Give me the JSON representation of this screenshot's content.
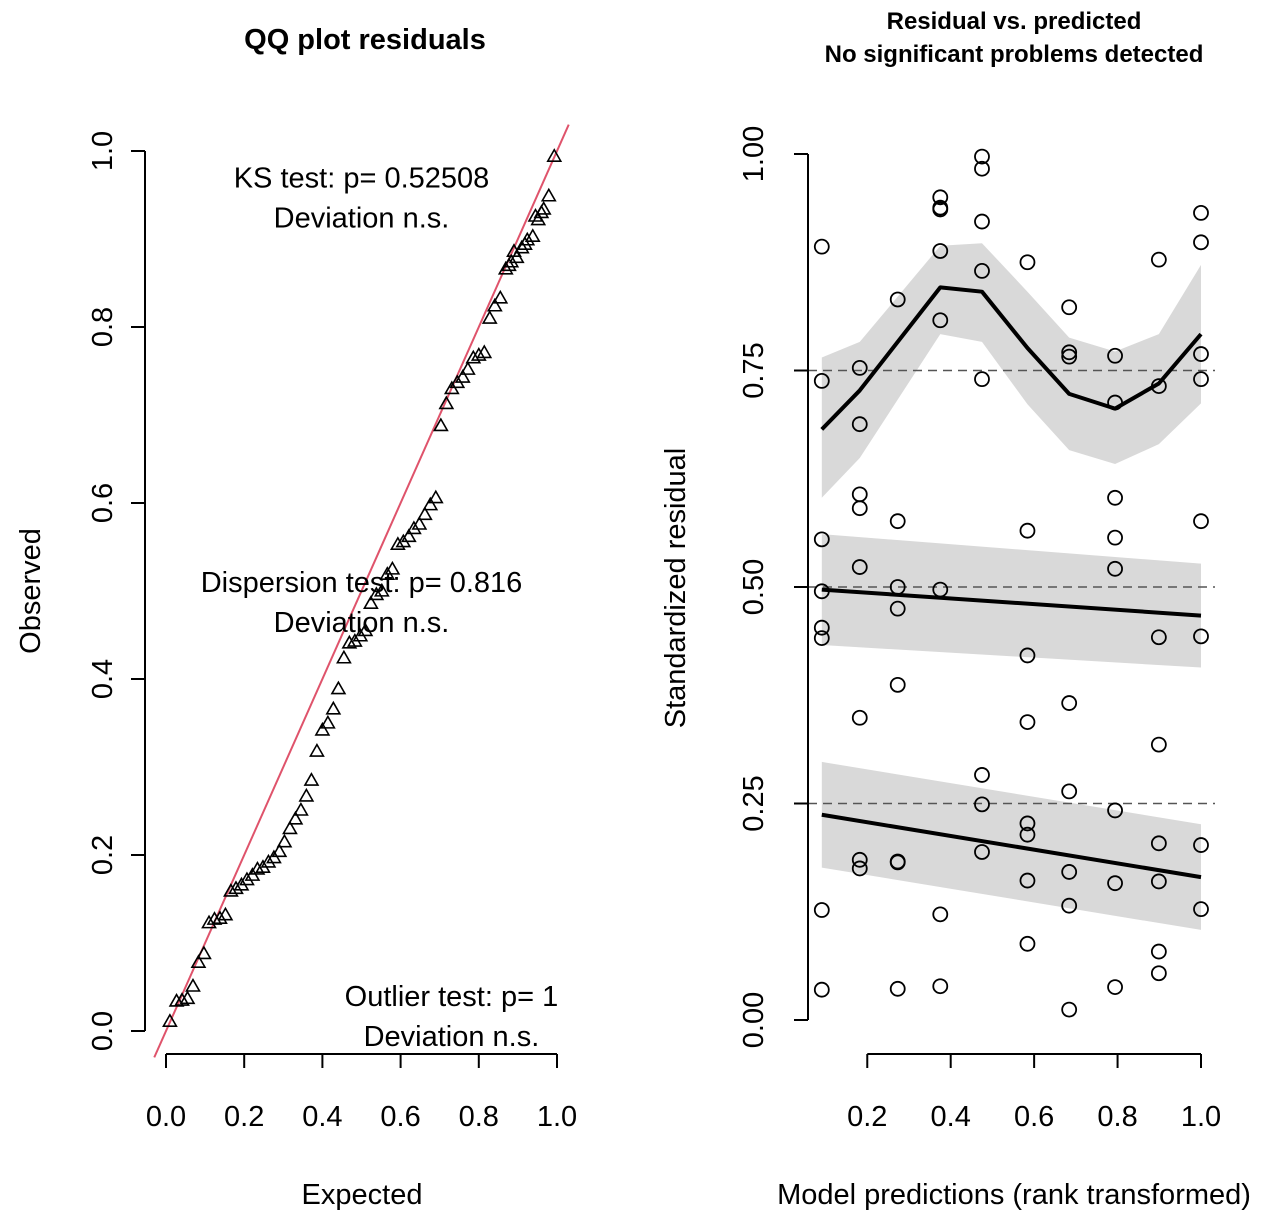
{
  "chart_data": [
    {
      "type": "scatter",
      "title": "QQ plot residuals",
      "xlabel": "Expected",
      "ylabel": "Observed",
      "xlim": [
        0,
        1
      ],
      "ylim": [
        0,
        1
      ],
      "x_ticks": [
        "0.0",
        "0.2",
        "0.4",
        "0.6",
        "0.8",
        "1.0"
      ],
      "y_ticks": [
        "0.0",
        "0.2",
        "0.4",
        "0.6",
        "0.8",
        "1.0"
      ],
      "marker": "triangle",
      "reference_line": {
        "from": [
          -0.03,
          -0.03
        ],
        "to": [
          1.03,
          1.03
        ],
        "color": "#DF536B"
      },
      "annotations": [
        {
          "lines": [
            "KS test: p= 0.52508",
            "Deviation  n.s."
          ],
          "x": 0.5,
          "y": 0.97
        },
        {
          "lines": [
            "Dispersion test: p= 0.816",
            "Deviation  n.s."
          ],
          "x": 0.5,
          "y": 0.51
        },
        {
          "lines": [
            "Outlier test: p= 1",
            "Deviation  n.s."
          ],
          "x": 0.73,
          "y": 0.04
        }
      ],
      "points": [
        [
          0.01,
          0.011
        ],
        [
          0.027,
          0.034
        ],
        [
          0.041,
          0.035
        ],
        [
          0.055,
          0.037
        ],
        [
          0.069,
          0.051
        ],
        [
          0.083,
          0.078
        ],
        [
          0.097,
          0.088
        ],
        [
          0.11,
          0.123
        ],
        [
          0.124,
          0.127
        ],
        [
          0.138,
          0.128
        ],
        [
          0.152,
          0.132
        ],
        [
          0.166,
          0.159
        ],
        [
          0.179,
          0.162
        ],
        [
          0.193,
          0.166
        ],
        [
          0.207,
          0.172
        ],
        [
          0.221,
          0.177
        ],
        [
          0.234,
          0.184
        ],
        [
          0.248,
          0.186
        ],
        [
          0.262,
          0.192
        ],
        [
          0.276,
          0.197
        ],
        [
          0.29,
          0.204
        ],
        [
          0.303,
          0.215
        ],
        [
          0.317,
          0.23
        ],
        [
          0.331,
          0.241
        ],
        [
          0.345,
          0.251
        ],
        [
          0.359,
          0.267
        ],
        [
          0.372,
          0.285
        ],
        [
          0.386,
          0.318
        ],
        [
          0.4,
          0.342
        ],
        [
          0.414,
          0.35
        ],
        [
          0.428,
          0.366
        ],
        [
          0.441,
          0.389
        ],
        [
          0.455,
          0.424
        ],
        [
          0.469,
          0.441
        ],
        [
          0.483,
          0.443
        ],
        [
          0.497,
          0.449
        ],
        [
          0.51,
          0.455
        ],
        [
          0.524,
          0.486
        ],
        [
          0.538,
          0.496
        ],
        [
          0.552,
          0.5
        ],
        [
          0.566,
          0.519
        ],
        [
          0.579,
          0.525
        ],
        [
          0.593,
          0.553
        ],
        [
          0.607,
          0.556
        ],
        [
          0.621,
          0.562
        ],
        [
          0.634,
          0.571
        ],
        [
          0.648,
          0.576
        ],
        [
          0.662,
          0.587
        ],
        [
          0.676,
          0.598
        ],
        [
          0.69,
          0.606
        ],
        [
          0.703,
          0.688
        ],
        [
          0.717,
          0.713
        ],
        [
          0.731,
          0.73
        ],
        [
          0.745,
          0.737
        ],
        [
          0.759,
          0.743
        ],
        [
          0.772,
          0.752
        ],
        [
          0.786,
          0.765
        ],
        [
          0.8,
          0.768
        ],
        [
          0.814,
          0.771
        ],
        [
          0.828,
          0.81
        ],
        [
          0.841,
          0.824
        ],
        [
          0.855,
          0.833
        ],
        [
          0.869,
          0.866
        ],
        [
          0.883,
          0.874
        ],
        [
          0.897,
          0.879
        ],
        [
          0.91,
          0.89
        ],
        [
          0.924,
          0.899
        ],
        [
          0.938,
          0.903
        ],
        [
          0.952,
          0.922
        ],
        [
          0.966,
          0.934
        ],
        [
          0.979,
          0.949
        ],
        [
          0.993,
          0.994
        ],
        [
          0.96,
          0.93
        ],
        [
          0.945,
          0.926
        ],
        [
          0.918,
          0.894
        ],
        [
          0.877,
          0.87
        ],
        [
          0.89,
          0.886
        ]
      ]
    },
    {
      "type": "scatter",
      "title": "Residual vs. predicted",
      "subtitle": "No significant problems detected",
      "xlabel": "Model predictions (rank transformed)",
      "ylabel": "Standardized residual",
      "xlim": [
        0.05,
        1.0
      ],
      "ylim": [
        0,
        1
      ],
      "x_ticks": [
        "0.2",
        "0.4",
        "0.6",
        "0.8",
        "1.0"
      ],
      "y_ticks": [
        "0.00",
        "0.25",
        "0.50",
        "0.75",
        "1.00"
      ],
      "marker": "circle",
      "reference_lines_y": [
        0.25,
        0.5,
        0.75
      ],
      "points": [
        [
          0.091,
          0.893
        ],
        [
          0.091,
          0.738
        ],
        [
          0.091,
          0.555
        ],
        [
          0.091,
          0.495
        ],
        [
          0.091,
          0.453
        ],
        [
          0.091,
          0.441
        ],
        [
          0.091,
          0.127
        ],
        [
          0.091,
          0.035
        ],
        [
          0.182,
          0.753
        ],
        [
          0.182,
          0.688
        ],
        [
          0.182,
          0.607
        ],
        [
          0.182,
          0.591
        ],
        [
          0.182,
          0.523
        ],
        [
          0.182,
          0.349
        ],
        [
          0.182,
          0.185
        ],
        [
          0.182,
          0.175
        ],
        [
          0.273,
          0.832
        ],
        [
          0.273,
          0.576
        ],
        [
          0.273,
          0.5
        ],
        [
          0.273,
          0.475
        ],
        [
          0.273,
          0.387
        ],
        [
          0.273,
          0.183
        ],
        [
          0.273,
          0.182
        ],
        [
          0.273,
          0.036
        ],
        [
          0.375,
          0.95
        ],
        [
          0.375,
          0.938
        ],
        [
          0.375,
          0.936
        ],
        [
          0.375,
          0.888
        ],
        [
          0.375,
          0.808
        ],
        [
          0.375,
          0.497
        ],
        [
          0.375,
          0.122
        ],
        [
          0.375,
          0.039
        ],
        [
          0.475,
          0.997
        ],
        [
          0.475,
          0.983
        ],
        [
          0.475,
          0.922
        ],
        [
          0.475,
          0.865
        ],
        [
          0.475,
          0.74
        ],
        [
          0.475,
          0.283
        ],
        [
          0.475,
          0.249
        ],
        [
          0.475,
          0.194
        ],
        [
          0.584,
          0.875
        ],
        [
          0.584,
          0.565
        ],
        [
          0.584,
          0.421
        ],
        [
          0.584,
          0.344
        ],
        [
          0.584,
          0.227
        ],
        [
          0.584,
          0.214
        ],
        [
          0.584,
          0.161
        ],
        [
          0.584,
          0.088
        ],
        [
          0.684,
          0.823
        ],
        [
          0.684,
          0.771
        ],
        [
          0.684,
          0.766
        ],
        [
          0.684,
          0.366
        ],
        [
          0.684,
          0.264
        ],
        [
          0.684,
          0.171
        ],
        [
          0.684,
          0.132
        ],
        [
          0.684,
          0.012
        ],
        [
          0.794,
          0.767
        ],
        [
          0.794,
          0.713
        ],
        [
          0.794,
          0.603
        ],
        [
          0.794,
          0.557
        ],
        [
          0.794,
          0.521
        ],
        [
          0.794,
          0.242
        ],
        [
          0.794,
          0.158
        ],
        [
          0.794,
          0.038
        ],
        [
          0.899,
          0.878
        ],
        [
          0.899,
          0.732
        ],
        [
          0.899,
          0.442
        ],
        [
          0.899,
          0.318
        ],
        [
          0.899,
          0.204
        ],
        [
          0.899,
          0.16
        ],
        [
          0.899,
          0.079
        ],
        [
          0.899,
          0.054
        ],
        [
          1.0,
          0.932
        ],
        [
          1.0,
          0.898
        ],
        [
          1.0,
          0.769
        ],
        [
          1.0,
          0.74
        ],
        [
          1.0,
          0.576
        ],
        [
          1.0,
          0.443
        ],
        [
          1.0,
          0.202
        ],
        [
          1.0,
          0.128
        ]
      ],
      "quantile_fits": [
        {
          "quantile": 0.75,
          "x": [
            0.091,
            0.182,
            0.375,
            0.475,
            0.584,
            0.684,
            0.794,
            0.899,
            1.0
          ],
          "fit": [
            0.682,
            0.727,
            0.846,
            0.841,
            0.776,
            0.723,
            0.706,
            0.735,
            0.792
          ],
          "lower": [
            0.603,
            0.649,
            0.792,
            0.783,
            0.711,
            0.658,
            0.642,
            0.665,
            0.712
          ],
          "upper": [
            0.765,
            0.783,
            0.894,
            0.897,
            0.841,
            0.788,
            0.772,
            0.792,
            0.872
          ]
        },
        {
          "quantile": 0.5,
          "x": [
            0.091,
            1.0
          ],
          "fit": [
            0.497,
            0.467
          ],
          "lower": [
            0.433,
            0.407
          ],
          "upper": [
            0.561,
            0.527
          ]
        },
        {
          "quantile": 0.25,
          "x": [
            0.091,
            1.0
          ],
          "fit": [
            0.237,
            0.165
          ],
          "lower": [
            0.176,
            0.104
          ],
          "upper": [
            0.298,
            0.226
          ]
        }
      ]
    }
  ]
}
